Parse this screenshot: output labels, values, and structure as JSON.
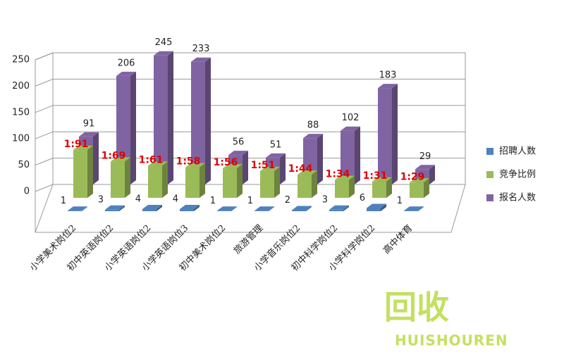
{
  "chart_data": {
    "type": "bar3d",
    "categories": [
      "小学美术岗位2",
      "初中英语岗位2",
      "小学英语岗位2",
      "小学英语岗位3",
      "初中美术岗位2",
      "旅游管理",
      "小学音乐岗位2",
      "初中科学岗位2",
      "小学科学岗位2",
      "高中体育"
    ],
    "series": [
      {
        "name": "招聘人数",
        "color": "#4f81bd",
        "values": [
          1,
          3,
          4,
          4,
          1,
          1,
          2,
          3,
          6,
          1
        ]
      },
      {
        "name": "竞争比例",
        "color": "#9bbb59",
        "values": [
          91,
          69,
          61,
          58,
          56,
          51,
          44,
          34,
          31,
          29
        ],
        "value_labels": [
          "1:91",
          "1:69",
          "1:61",
          "1:58",
          "1:56",
          "1:51",
          "1:44",
          "1:34",
          "1:31",
          "1:29"
        ]
      },
      {
        "name": "报名人数",
        "color": "#8064a2",
        "values": [
          91,
          206,
          245,
          233,
          56,
          51,
          88,
          102,
          183,
          29
        ]
      }
    ],
    "ylim": [
      0,
      250
    ],
    "yticks": [
      0,
      50,
      100,
      150,
      200,
      250
    ],
    "grid": true,
    "legend": "right"
  },
  "watermark": {
    "text": "回收",
    "subtext": "HUISHOUREN"
  }
}
